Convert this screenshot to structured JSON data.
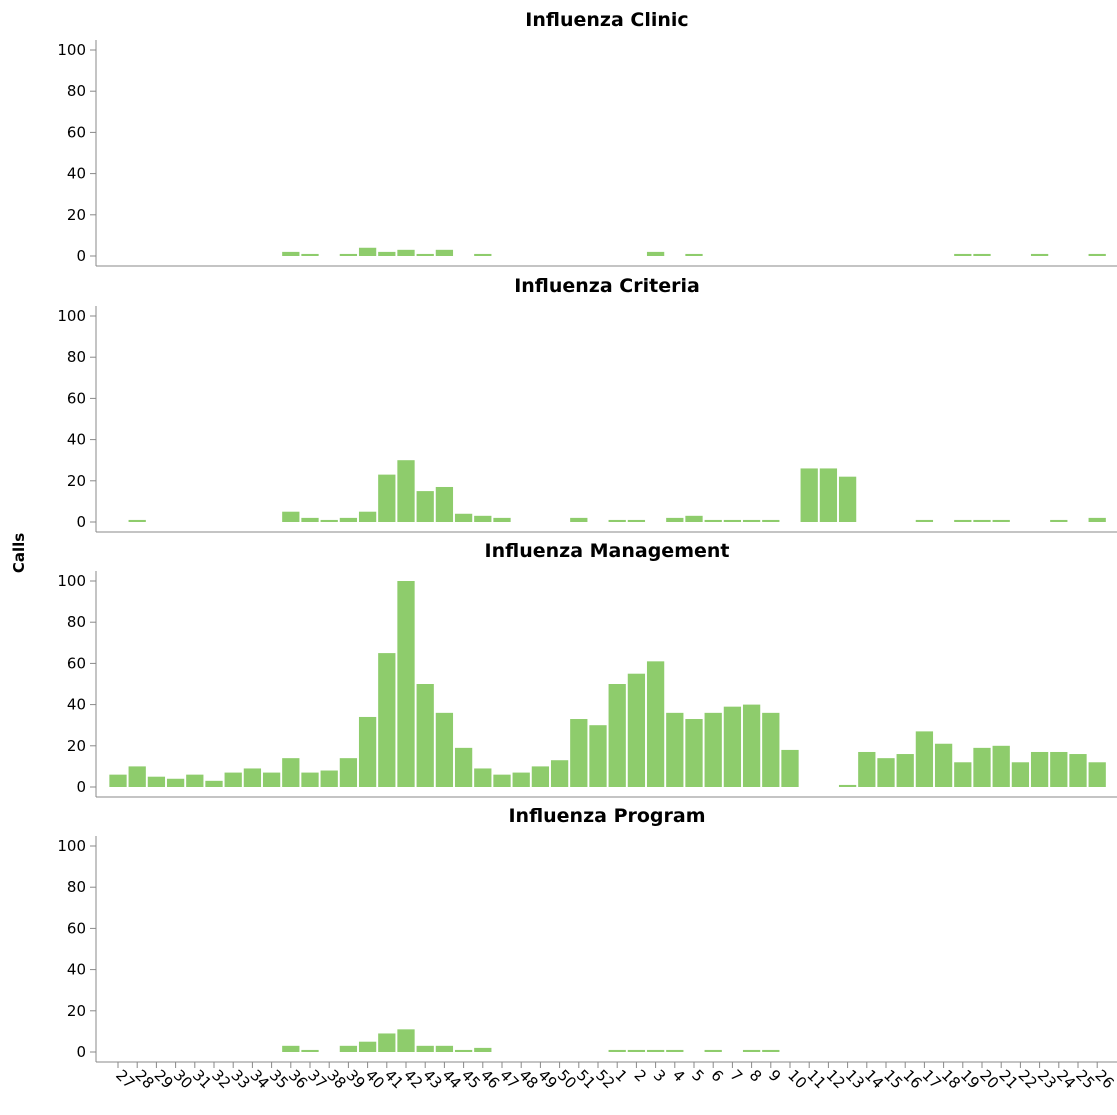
{
  "ylabel": "Calls",
  "chart_data": [
    {
      "type": "bar",
      "title": "Influenza Clinic",
      "color": "#8ecc6c",
      "ylim": [
        0,
        100
      ],
      "yticks": [
        0,
        20,
        40,
        60,
        80,
        100
      ],
      "categories": [
        "27",
        "28",
        "29",
        "30",
        "31",
        "32",
        "33",
        "34",
        "35",
        "36",
        "37",
        "38",
        "39",
        "40",
        "41",
        "42",
        "43",
        "44",
        "45",
        "46",
        "47",
        "48",
        "49",
        "50",
        "51",
        "52",
        "1",
        "2",
        "3",
        "4",
        "5",
        "6",
        "7",
        "8",
        "9",
        "10",
        "11",
        "12",
        "13",
        "14",
        "15",
        "16",
        "17",
        "18",
        "19",
        "20",
        "21",
        "22",
        "23",
        "24",
        "25",
        "26"
      ],
      "values": [
        0,
        0,
        0,
        0,
        0,
        0,
        0,
        0,
        0,
        2,
        1,
        0,
        1,
        4,
        2,
        3,
        1,
        3,
        0,
        1,
        0,
        0,
        0,
        0,
        0,
        0,
        0,
        0,
        2,
        0,
        1,
        0,
        0,
        0,
        0,
        0,
        0,
        0,
        0,
        0,
        0,
        0,
        0,
        0,
        1,
        1,
        0,
        0,
        1,
        0,
        0,
        1
      ]
    },
    {
      "type": "bar",
      "title": "Influenza Criteria",
      "color": "#8ecc6c",
      "ylim": [
        0,
        100
      ],
      "yticks": [
        0,
        20,
        40,
        60,
        80,
        100
      ],
      "categories": [
        "27",
        "28",
        "29",
        "30",
        "31",
        "32",
        "33",
        "34",
        "35",
        "36",
        "37",
        "38",
        "39",
        "40",
        "41",
        "42",
        "43",
        "44",
        "45",
        "46",
        "47",
        "48",
        "49",
        "50",
        "51",
        "52",
        "1",
        "2",
        "3",
        "4",
        "5",
        "6",
        "7",
        "8",
        "9",
        "10",
        "11",
        "12",
        "13",
        "14",
        "15",
        "16",
        "17",
        "18",
        "19",
        "20",
        "21",
        "22",
        "23",
        "24",
        "25",
        "26"
      ],
      "values": [
        0,
        1,
        0,
        0,
        0,
        0,
        0,
        0,
        0,
        5,
        2,
        1,
        2,
        5,
        23,
        30,
        15,
        17,
        4,
        3,
        2,
        0,
        0,
        0,
        2,
        0,
        1,
        1,
        0,
        2,
        3,
        1,
        1,
        1,
        1,
        0,
        26,
        26,
        22,
        0,
        0,
        0,
        1,
        0,
        1,
        1,
        1,
        0,
        0,
        1,
        0,
        2
      ]
    },
    {
      "type": "bar",
      "title": "Influenza Management",
      "color": "#8ecc6c",
      "ylim": [
        0,
        100
      ],
      "yticks": [
        0,
        20,
        40,
        60,
        80,
        100
      ],
      "categories": [
        "27",
        "28",
        "29",
        "30",
        "31",
        "32",
        "33",
        "34",
        "35",
        "36",
        "37",
        "38",
        "39",
        "40",
        "41",
        "42",
        "43",
        "44",
        "45",
        "46",
        "47",
        "48",
        "49",
        "50",
        "51",
        "52",
        "1",
        "2",
        "3",
        "4",
        "5",
        "6",
        "7",
        "8",
        "9",
        "10",
        "11",
        "12",
        "13",
        "14",
        "15",
        "16",
        "17",
        "18",
        "19",
        "20",
        "21",
        "22",
        "23",
        "24",
        "25",
        "26"
      ],
      "values": [
        6,
        10,
        5,
        4,
        6,
        3,
        7,
        9,
        7,
        14,
        7,
        8,
        14,
        34,
        65,
        100,
        50,
        36,
        19,
        9,
        6,
        7,
        10,
        13,
        33,
        30,
        50,
        55,
        61,
        36,
        33,
        36,
        39,
        40,
        36,
        18,
        0,
        0,
        1,
        17,
        14,
        16,
        27,
        21,
        12,
        19,
        20,
        12,
        17,
        17,
        16,
        12
      ]
    },
    {
      "type": "bar",
      "title": "Influenza Program",
      "color": "#8ecc6c",
      "ylim": [
        0,
        100
      ],
      "yticks": [
        0,
        20,
        40,
        60,
        80,
        100
      ],
      "categories": [
        "27",
        "28",
        "29",
        "30",
        "31",
        "32",
        "33",
        "34",
        "35",
        "36",
        "37",
        "38",
        "39",
        "40",
        "41",
        "42",
        "43",
        "44",
        "45",
        "46",
        "47",
        "48",
        "49",
        "50",
        "51",
        "52",
        "1",
        "2",
        "3",
        "4",
        "5",
        "6",
        "7",
        "8",
        "9",
        "10",
        "11",
        "12",
        "13",
        "14",
        "15",
        "16",
        "17",
        "18",
        "19",
        "20",
        "21",
        "22",
        "23",
        "24",
        "25",
        "26"
      ],
      "values": [
        0,
        0,
        0,
        0,
        0,
        0,
        0,
        0,
        0,
        3,
        1,
        0,
        3,
        5,
        9,
        11,
        3,
        3,
        1,
        2,
        0,
        0,
        0,
        0,
        0,
        0,
        1,
        1,
        1,
        1,
        0,
        1,
        0,
        1,
        1,
        0,
        0,
        0,
        0,
        0,
        0,
        0,
        0,
        0,
        0,
        0,
        0,
        0,
        0,
        0,
        0,
        0
      ]
    }
  ]
}
